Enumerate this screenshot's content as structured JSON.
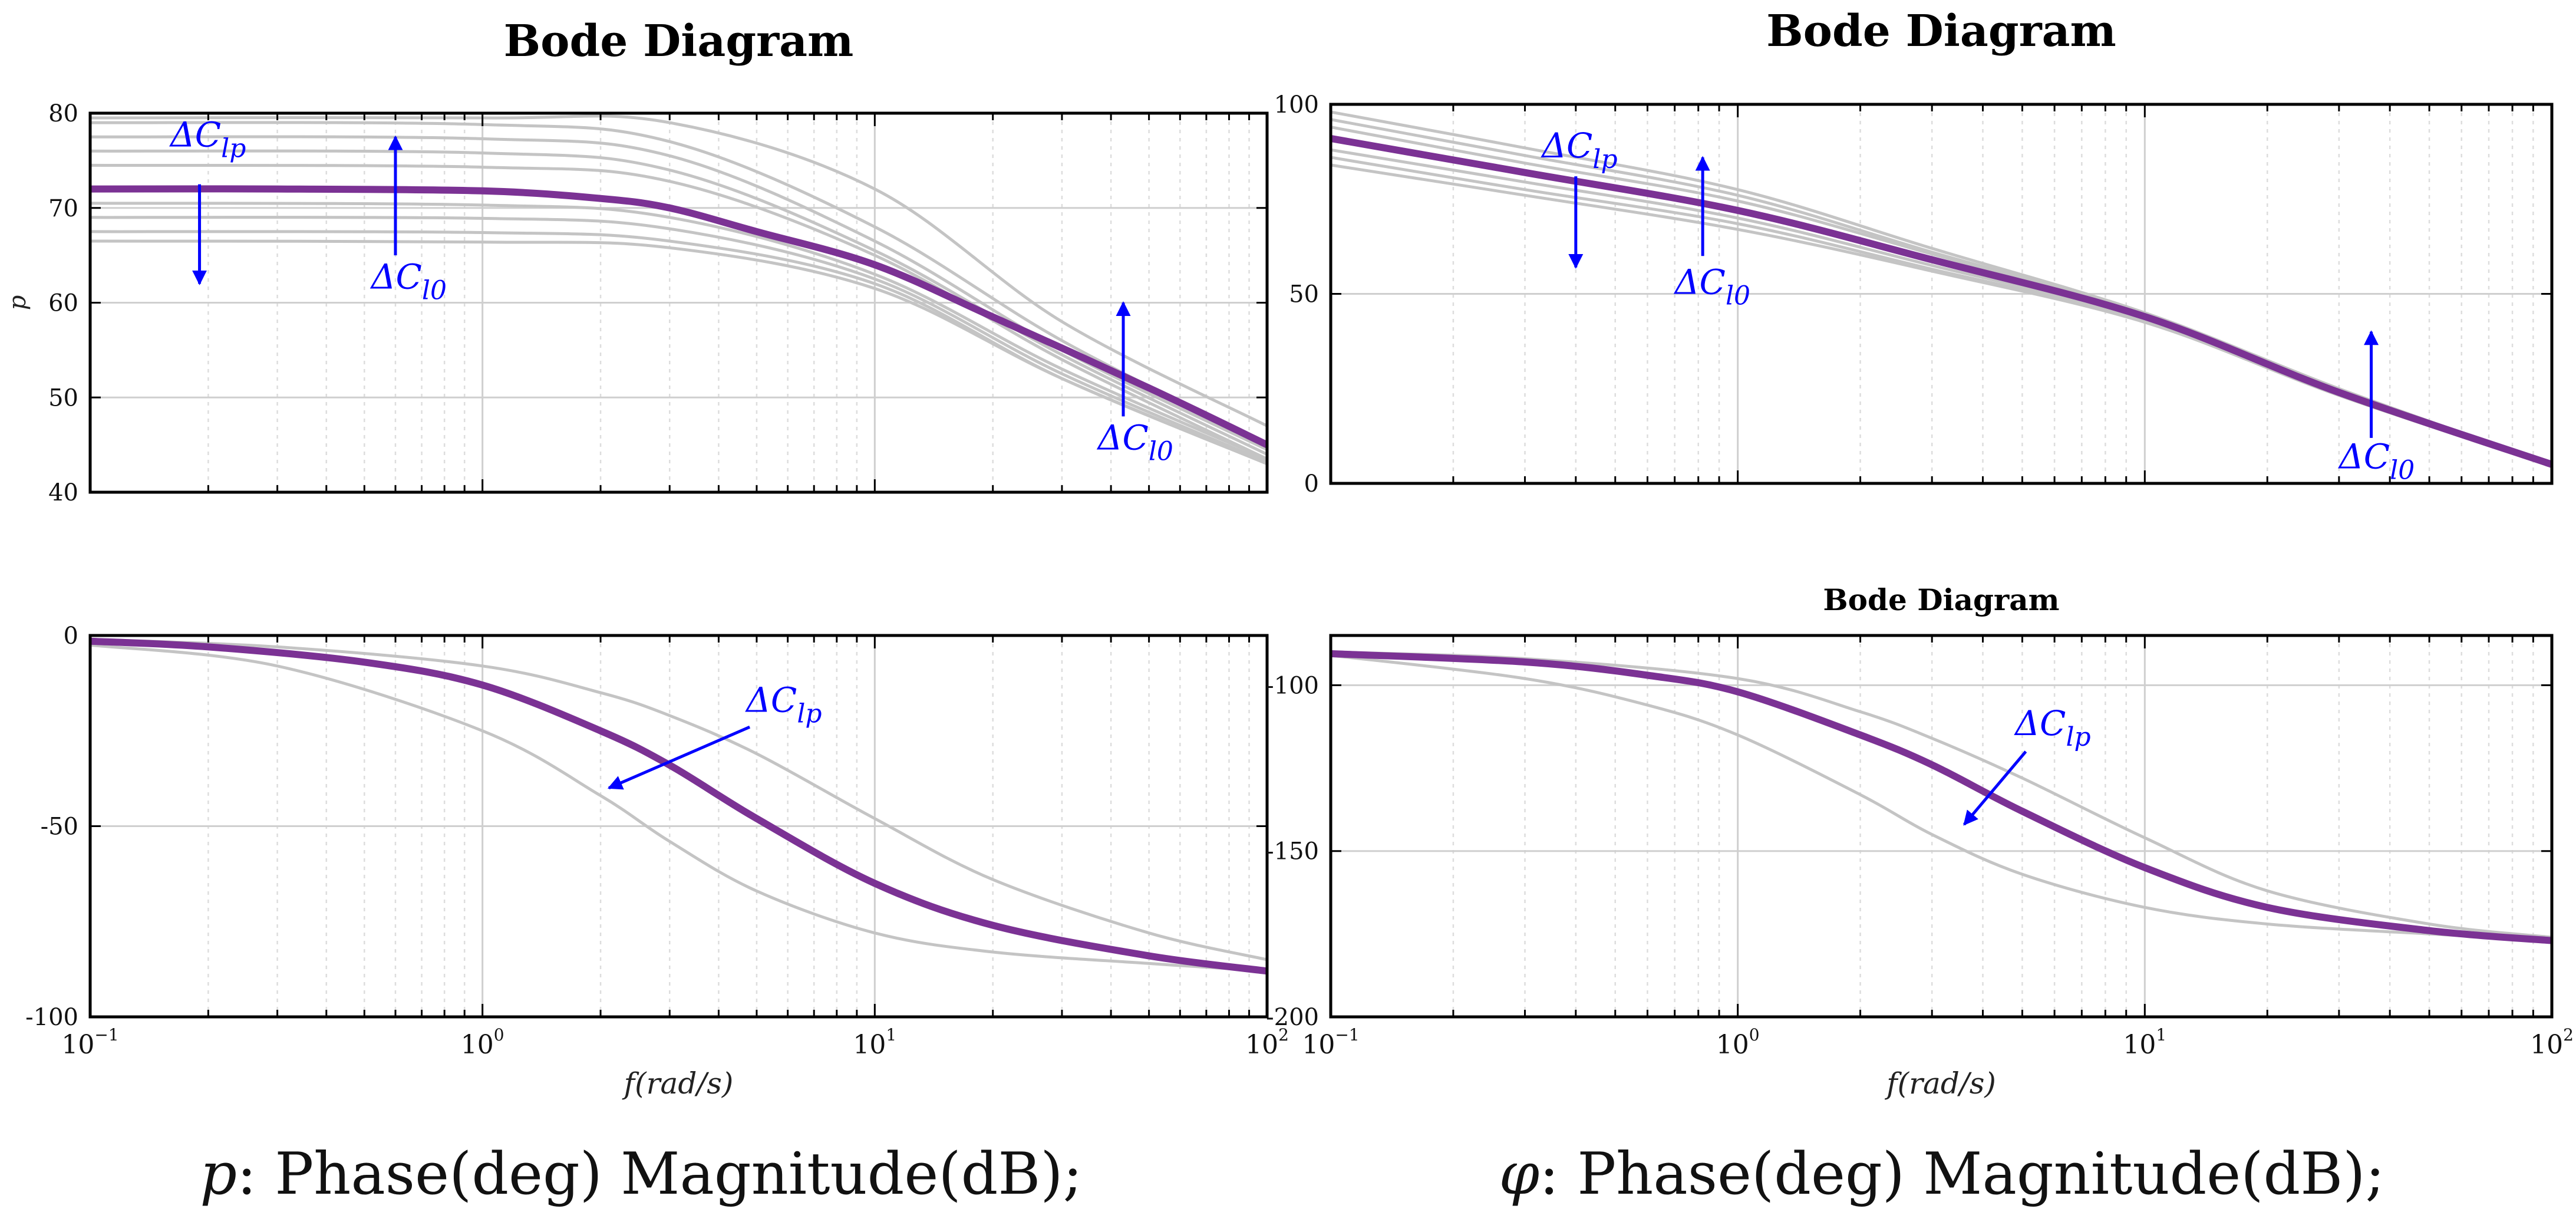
{
  "colors": {
    "main": "#7B3294",
    "family": "#C4C4C4",
    "annotation": "#0000FF",
    "grid_major": "#CFCFCF",
    "grid_minor": "#DDDDDD",
    "axis": "#000000"
  },
  "captions": {
    "left": "p: Phase(deg) Magnitude(dB);",
    "right": "φ: Phase(deg) Magnitude(dB);"
  },
  "chart_data": [
    {
      "id": "p-magnitude",
      "type": "line",
      "title": "Bode Diagram",
      "xlabel": "",
      "ylabel": "p",
      "xscale": "log",
      "xlim": [
        0.1,
        100
      ],
      "ylim": [
        40,
        80
      ],
      "yticks": [
        40,
        50,
        60,
        70,
        80
      ],
      "xticks": [],
      "grid": true,
      "main_series": {
        "name": "nominal",
        "x": [
          0.1,
          0.3,
          1,
          2,
          3,
          5,
          10,
          20,
          50,
          100
        ],
        "y": [
          72,
          72,
          71.8,
          71,
          70,
          67.5,
          64,
          58.5,
          51,
          45
        ]
      },
      "family": [
        {
          "x": [
            0.1,
            1,
            3,
            10,
            30,
            100
          ],
          "y": [
            79,
            78.8,
            77,
            68,
            56,
            45
          ]
        },
        {
          "x": [
            0.1,
            1,
            3,
            10,
            30,
            100
          ],
          "y": [
            77.5,
            77.3,
            75.5,
            66.5,
            55,
            44.5
          ]
        },
        {
          "x": [
            0.1,
            1,
            3,
            10,
            30,
            100
          ],
          "y": [
            76,
            75.8,
            74,
            65.5,
            54.5,
            44
          ]
        },
        {
          "x": [
            0.1,
            1,
            3,
            10,
            30,
            100
          ],
          "y": [
            74.5,
            74.3,
            72.8,
            65,
            54,
            43.5
          ]
        },
        {
          "x": [
            0.1,
            1,
            3,
            10,
            30,
            100
          ],
          "y": [
            70.5,
            70.3,
            69,
            63,
            53,
            43.5
          ]
        },
        {
          "x": [
            0.1,
            1,
            3,
            10,
            30,
            100
          ],
          "y": [
            69,
            68.9,
            67.8,
            62.5,
            52.5,
            43.2
          ]
        },
        {
          "x": [
            0.1,
            1,
            3,
            10,
            30,
            100
          ],
          "y": [
            67.5,
            67.4,
            66.5,
            62,
            52,
            43
          ]
        },
        {
          "x": [
            0.1,
            1,
            3,
            10,
            30,
            100
          ],
          "y": [
            66.5,
            66.4,
            65.8,
            61.5,
            52,
            43
          ]
        },
        {
          "x": [
            0.1,
            1,
            3,
            10,
            30,
            100
          ],
          "y": [
            79.5,
            79.5,
            79,
            72,
            58,
            47
          ]
        }
      ],
      "annotations": [
        {
          "text": "ΔC",
          "sub": "lp",
          "x": 0.16,
          "y": 76.5,
          "arrow": {
            "x": 0.19,
            "y1": 72.5,
            "y2": 62
          }
        },
        {
          "text": "ΔC",
          "sub": "l0",
          "x": 0.52,
          "y": 61.5,
          "arrow": {
            "x": 0.6,
            "y1": 65,
            "y2": 77.5
          }
        },
        {
          "text": "ΔC",
          "sub": "l0",
          "x": 37,
          "y": 44.5,
          "arrow": {
            "x": 43,
            "y1": 48,
            "y2": 60
          }
        }
      ]
    },
    {
      "id": "phi-magnitude",
      "type": "line",
      "title": "Bode Diagram",
      "xlabel": "",
      "ylabel": "",
      "xscale": "log",
      "xlim": [
        0.1,
        100
      ],
      "ylim": [
        0,
        100
      ],
      "yticks": [
        0,
        50,
        100
      ],
      "xticks": [],
      "grid": true,
      "main_series": {
        "name": "nominal",
        "x": [
          0.1,
          0.3,
          1,
          3,
          10,
          30,
          100
        ],
        "y": [
          91,
          82,
          72,
          59,
          44,
          24,
          5
        ]
      },
      "family": [
        {
          "x": [
            0.1,
            0.3,
            1,
            3,
            10,
            30,
            100
          ],
          "y": [
            98,
            88.5,
            77.5,
            62,
            45,
            25,
            5
          ]
        },
        {
          "x": [
            0.1,
            0.3,
            1,
            3,
            10,
            30,
            100
          ],
          "y": [
            96,
            86.5,
            76,
            61,
            44.8,
            24.8,
            5
          ]
        },
        {
          "x": [
            0.1,
            0.3,
            1,
            3,
            10,
            30,
            100
          ],
          "y": [
            94,
            84.5,
            74.5,
            60.5,
            44.5,
            24.5,
            5
          ]
        },
        {
          "x": [
            0.1,
            0.3,
            1,
            3,
            10,
            30,
            100
          ],
          "y": [
            88,
            79.5,
            70,
            57.5,
            43.5,
            23.8,
            4.8
          ]
        },
        {
          "x": [
            0.1,
            0.3,
            1,
            3,
            10,
            30,
            100
          ],
          "y": [
            86,
            77.5,
            68.5,
            56.5,
            43,
            23.5,
            4.7
          ]
        },
        {
          "x": [
            0.1,
            0.3,
            1,
            3,
            10,
            30,
            100
          ],
          "y": [
            84,
            76,
            67,
            56,
            42.5,
            23.2,
            4.6
          ]
        }
      ],
      "annotations": [
        {
          "text": "ΔC",
          "sub": "lp",
          "x": 0.33,
          "y": 86,
          "arrow": {
            "x": 0.4,
            "y1": 81,
            "y2": 57
          }
        },
        {
          "text": "ΔC",
          "sub": "l0",
          "x": 0.7,
          "y": 50,
          "arrow": {
            "x": 0.82,
            "y1": 60,
            "y2": 86
          }
        },
        {
          "text": "ΔC",
          "sub": "l0",
          "x": 30,
          "y": 4,
          "arrow": {
            "x": 36,
            "y1": 12,
            "y2": 40
          }
        }
      ]
    },
    {
      "id": "p-phase",
      "type": "line",
      "title": "",
      "xlabel": "f(rad/s)",
      "ylabel": "",
      "xscale": "log",
      "xlim": [
        0.1,
        100
      ],
      "ylim": [
        -100,
        0
      ],
      "yticks": [
        -100,
        -50,
        0
      ],
      "ytick_labels": [
        "-100",
        "-50",
        "0"
      ],
      "xticks": [
        0.1,
        1,
        10,
        100
      ],
      "xtick_labels": [
        {
          "base": "10",
          "exp": "−1"
        },
        {
          "base": "10",
          "exp": "0"
        },
        {
          "base": "10",
          "exp": "1"
        },
        {
          "base": "10",
          "exp": "2"
        }
      ],
      "grid": true,
      "main_series": {
        "name": "nominal",
        "x": [
          0.1,
          0.2,
          0.5,
          1,
          2,
          3,
          5,
          10,
          20,
          50,
          100
        ],
        "y": [
          -1.5,
          -3,
          -7,
          -13,
          -25,
          -34,
          -48,
          -65,
          -76,
          -84,
          -88
        ]
      },
      "family": [
        {
          "x": [
            0.1,
            0.3,
            1,
            2,
            3,
            5,
            10,
            20,
            50,
            100
          ],
          "y": [
            -1,
            -3,
            -8,
            -15,
            -21,
            -31,
            -48,
            -64,
            -78,
            -85
          ]
        },
        {
          "x": [
            0.1,
            0.3,
            1,
            2,
            3,
            5,
            10,
            20,
            50,
            100
          ],
          "y": [
            -2.5,
            -8,
            -25,
            -42,
            -54,
            -67,
            -78,
            -83,
            -86,
            -88
          ]
        }
      ],
      "annotations": [
        {
          "text": "ΔC",
          "sub": "lp",
          "x": 4.7,
          "y": -20,
          "arrow": {
            "x1": 4.8,
            "y1": -24,
            "x2": 2.1,
            "y2": -40
          }
        }
      ]
    },
    {
      "id": "phi-phase",
      "type": "line",
      "title": "Bode Diagram",
      "xlabel": "f(rad/s)",
      "ylabel": "",
      "xscale": "log",
      "xlim": [
        0.1,
        100
      ],
      "ylim": [
        -200,
        -85
      ],
      "yticks": [
        -200,
        -150,
        -100
      ],
      "ytick_labels": [
        "-200",
        "-150",
        "-100"
      ],
      "xticks": [
        0.1,
        1,
        10,
        100
      ],
      "xtick_labels": [
        {
          "base": "10",
          "exp": "−1"
        },
        {
          "base": "10",
          "exp": "0"
        },
        {
          "base": "10",
          "exp": "1"
        },
        {
          "base": "10",
          "exp": "2"
        }
      ],
      "grid": true,
      "main_series": {
        "name": "nominal",
        "x": [
          0.1,
          0.3,
          0.6,
          1,
          2,
          3,
          5,
          10,
          20,
          50,
          100
        ],
        "y": [
          -90.5,
          -93,
          -97,
          -102,
          -115,
          -124,
          -138,
          -155,
          -167,
          -174,
          -177
        ]
      },
      "family": [
        {
          "x": [
            0.1,
            0.3,
            1,
            2,
            3,
            5,
            10,
            20,
            50,
            100
          ],
          "y": [
            -90,
            -92,
            -98,
            -108,
            -116,
            -128,
            -146,
            -162,
            -172,
            -176
          ]
        },
        {
          "x": [
            0.1,
            0.3,
            0.6,
            1,
            2,
            3,
            5,
            10,
            20,
            50,
            100
          ],
          "y": [
            -91,
            -98,
            -106,
            -115,
            -133,
            -145,
            -157,
            -167,
            -172,
            -175,
            -177
          ]
        }
      ],
      "annotations": [
        {
          "text": "ΔC",
          "sub": "lp",
          "x": 4.8,
          "y": -115,
          "arrow": {
            "x1": 5.1,
            "y1": -120,
            "x2": 3.6,
            "y2": -142
          }
        }
      ]
    }
  ]
}
